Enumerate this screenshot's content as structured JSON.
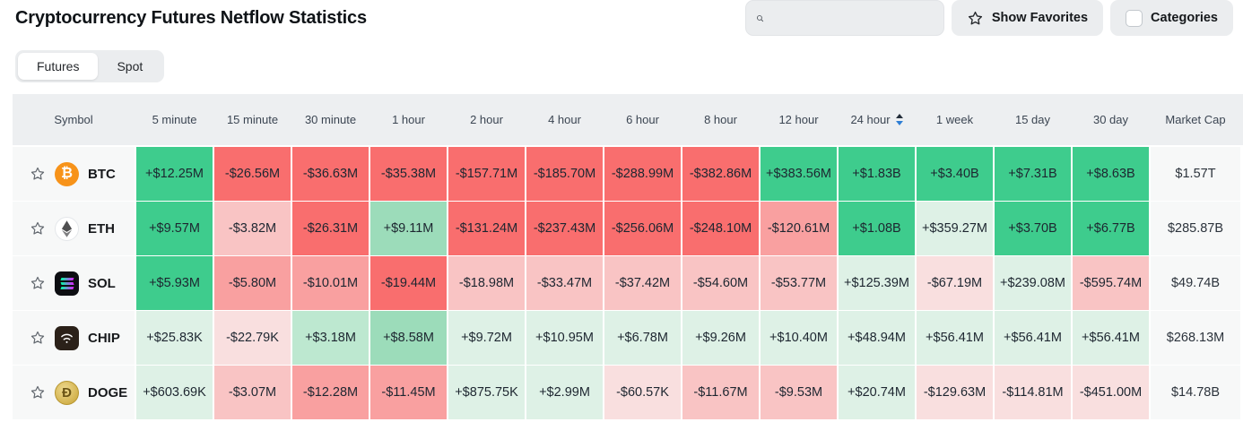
{
  "header": {
    "title": "Cryptocurrency Futures Netflow Statistics",
    "search": {
      "value": "",
      "placeholder": ""
    },
    "show_favorites_label": "Show Favorites",
    "categories_label": "Categories"
  },
  "tabs": [
    {
      "label": "Futures",
      "active": true
    },
    {
      "label": "Spot",
      "active": false
    }
  ],
  "table": {
    "columns": [
      "Symbol",
      "5 minute",
      "15 minute",
      "30 minute",
      "1 hour",
      "2 hour",
      "4 hour",
      "6 hour",
      "8 hour",
      "12 hour",
      "24 hour",
      "1 week",
      "15 day",
      "30 day",
      "Market Cap"
    ],
    "sorted_column": "24 hour",
    "sort_direction": "desc",
    "palette": {
      "g4": "#3ecc8d",
      "g3": "#9cdcba",
      "g2": "#bde8d0",
      "g1": "#def1e6",
      "r4": "#f96e6e",
      "r3": "#f9a0a0",
      "r2": "#f9c4c4",
      "r1": "#f9dfdf",
      "neutral": "#f7f8f8"
    },
    "rows": [
      {
        "symbol": "BTC",
        "icon": "btc-icon",
        "favorited": false,
        "market_cap": "$1.57T",
        "cells": [
          {
            "v": "+$12.25M",
            "c": "g4"
          },
          {
            "v": "-$26.56M",
            "c": "r4"
          },
          {
            "v": "-$36.63M",
            "c": "r4"
          },
          {
            "v": "-$35.38M",
            "c": "r4"
          },
          {
            "v": "-$157.71M",
            "c": "r4"
          },
          {
            "v": "-$185.70M",
            "c": "r4"
          },
          {
            "v": "-$288.99M",
            "c": "r4"
          },
          {
            "v": "-$382.86M",
            "c": "r4"
          },
          {
            "v": "+$383.56M",
            "c": "g4"
          },
          {
            "v": "+$1.83B",
            "c": "g4"
          },
          {
            "v": "+$3.40B",
            "c": "g4"
          },
          {
            "v": "+$7.31B",
            "c": "g4"
          },
          {
            "v": "+$8.63B",
            "c": "g4"
          }
        ]
      },
      {
        "symbol": "ETH",
        "icon": "eth-icon",
        "favorited": false,
        "market_cap": "$285.87B",
        "cells": [
          {
            "v": "+$9.57M",
            "c": "g4"
          },
          {
            "v": "-$3.82M",
            "c": "r2"
          },
          {
            "v": "-$26.31M",
            "c": "r4"
          },
          {
            "v": "+$9.11M",
            "c": "g3"
          },
          {
            "v": "-$131.24M",
            "c": "r4"
          },
          {
            "v": "-$237.43M",
            "c": "r4"
          },
          {
            "v": "-$256.06M",
            "c": "r4"
          },
          {
            "v": "-$248.10M",
            "c": "r4"
          },
          {
            "v": "-$120.61M",
            "c": "r3"
          },
          {
            "v": "+$1.08B",
            "c": "g4"
          },
          {
            "v": "+$359.27M",
            "c": "g1"
          },
          {
            "v": "+$3.70B",
            "c": "g4"
          },
          {
            "v": "+$6.77B",
            "c": "g4"
          }
        ]
      },
      {
        "symbol": "SOL",
        "icon": "sol-icon",
        "favorited": false,
        "market_cap": "$49.74B",
        "cells": [
          {
            "v": "+$5.93M",
            "c": "g4"
          },
          {
            "v": "-$5.80M",
            "c": "r3"
          },
          {
            "v": "-$10.01M",
            "c": "r3"
          },
          {
            "v": "-$19.44M",
            "c": "r4"
          },
          {
            "v": "-$18.98M",
            "c": "r2"
          },
          {
            "v": "-$33.47M",
            "c": "r2"
          },
          {
            "v": "-$37.42M",
            "c": "r2"
          },
          {
            "v": "-$54.60M",
            "c": "r2"
          },
          {
            "v": "-$53.77M",
            "c": "r2"
          },
          {
            "v": "+$125.39M",
            "c": "g1"
          },
          {
            "v": "-$67.19M",
            "c": "r1"
          },
          {
            "v": "+$239.08M",
            "c": "g1"
          },
          {
            "v": "-$595.74M",
            "c": "r2"
          }
        ]
      },
      {
        "symbol": "CHIP",
        "icon": "chip-icon",
        "favorited": false,
        "market_cap": "$268.13M",
        "cells": [
          {
            "v": "+$25.83K",
            "c": "g1"
          },
          {
            "v": "-$22.79K",
            "c": "r1"
          },
          {
            "v": "+$3.18M",
            "c": "g2"
          },
          {
            "v": "+$8.58M",
            "c": "g3"
          },
          {
            "v": "+$9.72M",
            "c": "g1"
          },
          {
            "v": "+$10.95M",
            "c": "g1"
          },
          {
            "v": "+$6.78M",
            "c": "g1"
          },
          {
            "v": "+$9.26M",
            "c": "g1"
          },
          {
            "v": "+$10.40M",
            "c": "g1"
          },
          {
            "v": "+$48.94M",
            "c": "g1"
          },
          {
            "v": "+$56.41M",
            "c": "g1"
          },
          {
            "v": "+$56.41M",
            "c": "g1"
          },
          {
            "v": "+$56.41M",
            "c": "g1"
          }
        ]
      },
      {
        "symbol": "DOGE",
        "icon": "doge-icon",
        "favorited": false,
        "market_cap": "$14.78B",
        "cells": [
          {
            "v": "+$603.69K",
            "c": "g1"
          },
          {
            "v": "-$3.07M",
            "c": "r2"
          },
          {
            "v": "-$12.28M",
            "c": "r3"
          },
          {
            "v": "-$11.45M",
            "c": "r3"
          },
          {
            "v": "+$875.75K",
            "c": "g1"
          },
          {
            "v": "+$2.99M",
            "c": "g1"
          },
          {
            "v": "-$60.57K",
            "c": "r1"
          },
          {
            "v": "-$11.67M",
            "c": "r2"
          },
          {
            "v": "-$9.53M",
            "c": "r2"
          },
          {
            "v": "+$20.74M",
            "c": "g1"
          },
          {
            "v": "-$129.63M",
            "c": "r1"
          },
          {
            "v": "-$114.81M",
            "c": "r1"
          },
          {
            "v": "-$451.00M",
            "c": "r1"
          }
        ]
      }
    ]
  }
}
